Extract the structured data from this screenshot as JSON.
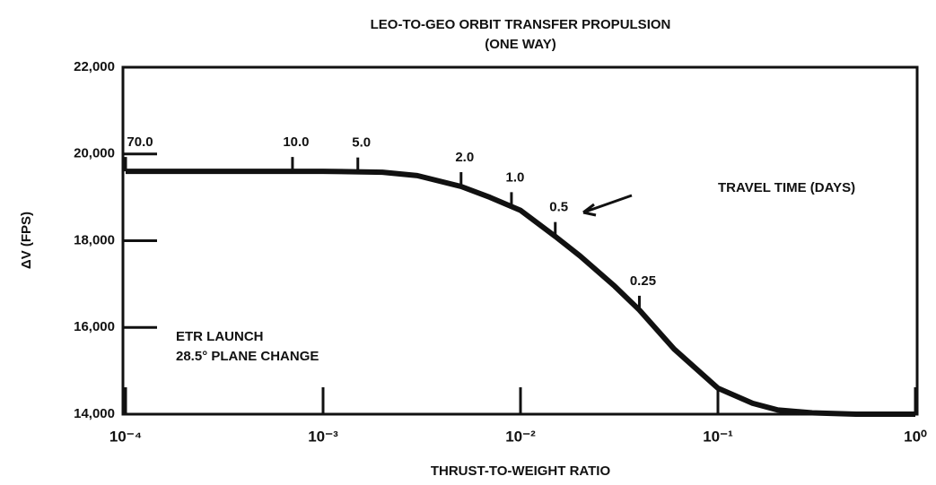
{
  "chart_data": {
    "type": "line",
    "title": "LEO-TO-GEO ORBIT TRANSFER PROPULSION",
    "subtitle": "(ONE WAY)",
    "x_label": "THRUST-TO-WEIGHT RATIO",
    "y_label": "ΔV (FPS)",
    "log_x": true,
    "xlim": [
      0.0001,
      1
    ],
    "xticks": [
      {
        "value": 0.0001,
        "label": "10⁻⁴"
      },
      {
        "value": 0.001,
        "label": "10⁻³"
      },
      {
        "value": 0.01,
        "label": "10⁻²"
      },
      {
        "value": 0.1,
        "label": "10⁻¹"
      },
      {
        "value": 1,
        "label": "10⁰"
      }
    ],
    "ylim": [
      14000,
      22000
    ],
    "yticks": [
      {
        "value": 14000,
        "label": "14,000"
      },
      {
        "value": 16000,
        "label": "16,000"
      },
      {
        "value": 18000,
        "label": "18,000"
      },
      {
        "value": 20000,
        "label": "20,000"
      },
      {
        "value": 22000,
        "label": "22,000"
      }
    ],
    "x": [
      0.0001,
      0.0005,
      0.001,
      0.002,
      0.003,
      0.005,
      0.007,
      0.01,
      0.015,
      0.02,
      0.03,
      0.04,
      0.06,
      0.1,
      0.15,
      0.2,
      0.3,
      0.5,
      1
    ],
    "series": [
      {
        "name": "ΔV",
        "color": "#111111",
        "values": [
          19600,
          19600,
          19600,
          19580,
          19500,
          19250,
          19000,
          18700,
          18100,
          17650,
          16950,
          16400,
          15500,
          14600,
          14250,
          14100,
          14030,
          14000,
          14000
        ]
      }
    ],
    "travel_time_title": "TRAVEL TIME (DAYS)",
    "travel_time_labels": [
      {
        "label": "70.0",
        "x": 0.0001
      },
      {
        "label": "10.0",
        "x": 0.0007
      },
      {
        "label": "5.0",
        "x": 0.0015
      },
      {
        "label": "2.0",
        "x": 0.005
      },
      {
        "label": "1.0",
        "x": 0.009
      },
      {
        "label": "0.5",
        "x": 0.015
      },
      {
        "label": "0.25",
        "x": 0.04
      }
    ],
    "annotations": [
      "ETR LAUNCH",
      "28.5° PLANE CHANGE"
    ]
  }
}
